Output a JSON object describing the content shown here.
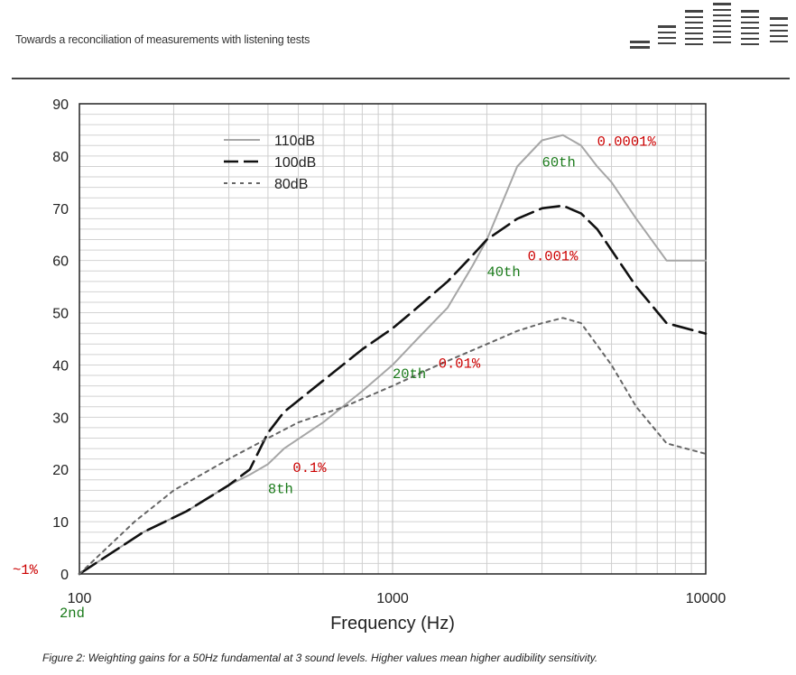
{
  "header": {
    "title": "Towards a reconciliation of measurements with listening tests"
  },
  "caption": "Figure 2: Weighting gains for a 50Hz fundamental at 3 sound levels. Higher values mean higher audibility sensitivity.",
  "chart_data": {
    "type": "line",
    "xlabel": "Frequency (Hz)",
    "ylabel": "",
    "xscale": "log",
    "xlim": [
      100,
      10000
    ],
    "ylim": [
      0,
      90
    ],
    "x_ticks": [
      "100",
      "1000",
      "10000"
    ],
    "y_ticks": [
      "0",
      "10",
      "20",
      "30",
      "40",
      "50",
      "60",
      "70",
      "80",
      "90"
    ],
    "grid": true,
    "legend_position": "top-left",
    "series": [
      {
        "name": "110dB",
        "style": "solid",
        "color": "#a6a6a6",
        "x": [
          100,
          160,
          220,
          300,
          350,
          400,
          450,
          600,
          800,
          1000,
          1200,
          1500,
          1800,
          2000,
          2500,
          3000,
          3500,
          4000,
          4500,
          5000,
          6000,
          7500,
          10000
        ],
        "y": [
          0,
          8,
          12,
          17,
          19,
          21,
          24,
          29,
          35,
          40,
          45,
          51,
          59,
          64,
          78,
          83,
          84,
          82,
          78,
          75,
          68,
          60,
          60
        ]
      },
      {
        "name": "100dB",
        "style": "dashed",
        "color": "#111111",
        "x": [
          100,
          160,
          220,
          300,
          350,
          400,
          450,
          600,
          800,
          1000,
          1200,
          1500,
          1800,
          2000,
          2500,
          3000,
          3500,
          4000,
          4500,
          5000,
          6000,
          7500,
          10000
        ],
        "y": [
          0,
          8,
          12,
          17,
          20,
          27,
          31,
          37,
          43,
          47,
          51,
          56,
          61,
          64,
          68,
          70,
          70.5,
          69,
          66,
          62,
          55,
          48,
          46
        ]
      },
      {
        "name": "80dB",
        "style": "dotted",
        "color": "#666666",
        "x": [
          100,
          150,
          200,
          300,
          400,
          500,
          700,
          1000,
          1400,
          2000,
          2500,
          3000,
          3500,
          4000,
          5000,
          6000,
          7500,
          10000
        ],
        "y": [
          0,
          10,
          16,
          22,
          26,
          29,
          32,
          36,
          40,
          44,
          46.5,
          48,
          49,
          48,
          40,
          32,
          25,
          23
        ]
      }
    ],
    "annotations": [
      {
        "text": "~1%",
        "x": 88,
        "y": 0,
        "color": "#cc0000"
      },
      {
        "text": "2nd",
        "x": 100,
        "y": -8.3,
        "color": "#1a7a1a"
      },
      {
        "text": "0.1%",
        "x": 480,
        "y": 19.5,
        "color": "#cc0000"
      },
      {
        "text": "8th",
        "x": 400,
        "y": 15.5,
        "color": "#1a7a1a"
      },
      {
        "text": "0.01%",
        "x": 1400,
        "y": 39.5,
        "color": "#cc0000"
      },
      {
        "text": "20th",
        "x": 1000,
        "y": 37.5,
        "color": "#1a7a1a"
      },
      {
        "text": "0.001%",
        "x": 2700,
        "y": 60,
        "color": "#cc0000"
      },
      {
        "text": "40th",
        "x": 2000,
        "y": 57,
        "color": "#1a7a1a"
      },
      {
        "text": "0.0001%",
        "x": 4500,
        "y": 82,
        "color": "#cc0000"
      },
      {
        "text": "60th",
        "x": 3000,
        "y": 78,
        "color": "#1a7a1a"
      }
    ]
  }
}
